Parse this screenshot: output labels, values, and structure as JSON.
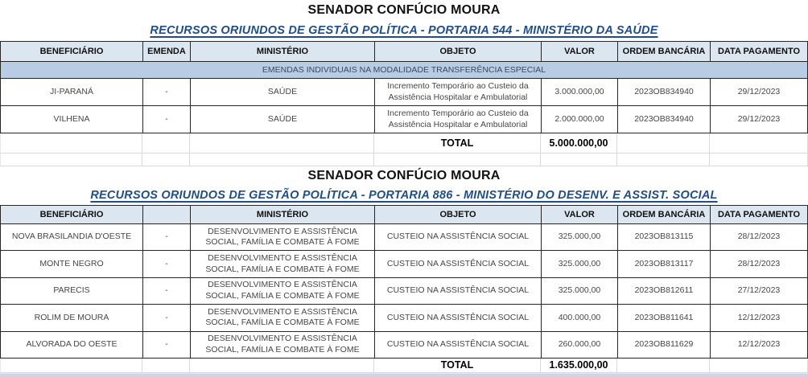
{
  "colors": {
    "header_bg": "#dce6f1",
    "band_bg": "#b8cce4",
    "subtitle_blue": "#1f4e8c",
    "border_dark": "#262626",
    "border_light": "#d9d9d9",
    "bottom_strip": "#c9d7ec"
  },
  "section1": {
    "title": "SENADOR CONFÚCIO MOURA",
    "subtitle": "RECURSOS ORIUNDOS DE GESTÃO POLÍTICA - PORTARIA 544 - MINISTÉRIO DA SAÚDE",
    "headers": [
      "BENEFICIÁRIO",
      "EMENDA",
      "MINISTÉRIO",
      "OBJETO",
      "VALOR",
      "ORDEM BANCÁRIA",
      "DATA PAGAMENTO"
    ],
    "band": "EMENDAS INDIVIDUAIS NA MODALIDADE TRANSFERÊNCIA ESPECIAL",
    "rows": [
      {
        "beneficiario": "JI-PARANÁ",
        "emenda": "-",
        "ministerio": "SAÚDE",
        "objeto": "Incremento Temporário ao Custeio da Assistência Hospitalar e Ambulatorial",
        "valor": "3.000.000,00",
        "ordem": "2023OB834940",
        "data": "29/12/2023"
      },
      {
        "beneficiario": "VILHENA",
        "emenda": "-",
        "ministerio": "SAÚDE",
        "objeto": "Incremento Temporário ao Custeio da Assistência Hospitalar e Ambulatorial",
        "valor": "2.000.000,00",
        "ordem": "2023OB834940",
        "data": "29/12/2023"
      }
    ],
    "total_label": "TOTAL",
    "total_value": "5.000.000,00"
  },
  "section2": {
    "title": "SENADOR CONFÚCIO MOURA",
    "subtitle": "RECURSOS ORIUNDOS DE GESTÃO POLÍTICA - PORTARIA 886 - MINISTÉRIO DO DESENV. E ASSIST. SOCIAL",
    "headers": [
      "BENEFICIÁRIO",
      "",
      "MINISTÉRIO",
      "OBJETO",
      "VALOR",
      "ORDEM BANCÁRIA",
      "DATA PAGAMENTO"
    ],
    "rows": [
      {
        "beneficiario": "NOVA BRASILANDIA D'OESTE",
        "emenda": "-",
        "ministerio": "DESENVOLVIMENTO E ASSISTÊNCIA SOCIAL, FAMÍLIA E COMBATE À FOME",
        "objeto": "CUSTEIO NA ASSISTÊNCIA SOCIAL",
        "valor": "325.000,00",
        "ordem": "2023OB813115",
        "data": "28/12/2023"
      },
      {
        "beneficiario": "MONTE NEGRO",
        "emenda": "-",
        "ministerio": "DESENVOLVIMENTO E ASSISTÊNCIA SOCIAL, FAMÍLIA E COMBATE À FOME",
        "objeto": "CUSTEIO NA ASSISTÊNCIA SOCIAL",
        "valor": "325.000,00",
        "ordem": "2023OB813117",
        "data": "28/12/2023"
      },
      {
        "beneficiario": "PARECIS",
        "emenda": "-",
        "ministerio": "DESENVOLVIMENTO E ASSISTÊNCIA SOCIAL, FAMÍLIA E COMBATE À FOME",
        "objeto": "CUSTEIO NA ASSISTÊNCIA SOCIAL",
        "valor": "325.000,00",
        "ordem": "2023OB812611",
        "data": "27/12/2023"
      },
      {
        "beneficiario": "ROLIM DE MOURA",
        "emenda": "-",
        "ministerio": "DESENVOLVIMENTO E ASSISTÊNCIA SOCIAL, FAMÍLIA E COMBATE À FOME",
        "objeto": "CUSTEIO NA ASSISTÊNCIA SOCIAL",
        "valor": "400.000,00",
        "ordem": "2023OB811641",
        "data": "12/12/2023"
      },
      {
        "beneficiario": "ALVORADA DO OESTE",
        "emenda": "-",
        "ministerio": "DESENVOLVIMENTO E ASSISTÊNCIA SOCIAL, FAMÍLIA E COMBATE À FOME",
        "objeto": "CUSTEIO NA ASSISTÊNCIA SOCIAL",
        "valor": "260.000,00",
        "ordem": "2023OB811629",
        "data": "12/12/2023"
      }
    ],
    "total_label": "TOTAL",
    "total_value": "1.635.000,00"
  }
}
